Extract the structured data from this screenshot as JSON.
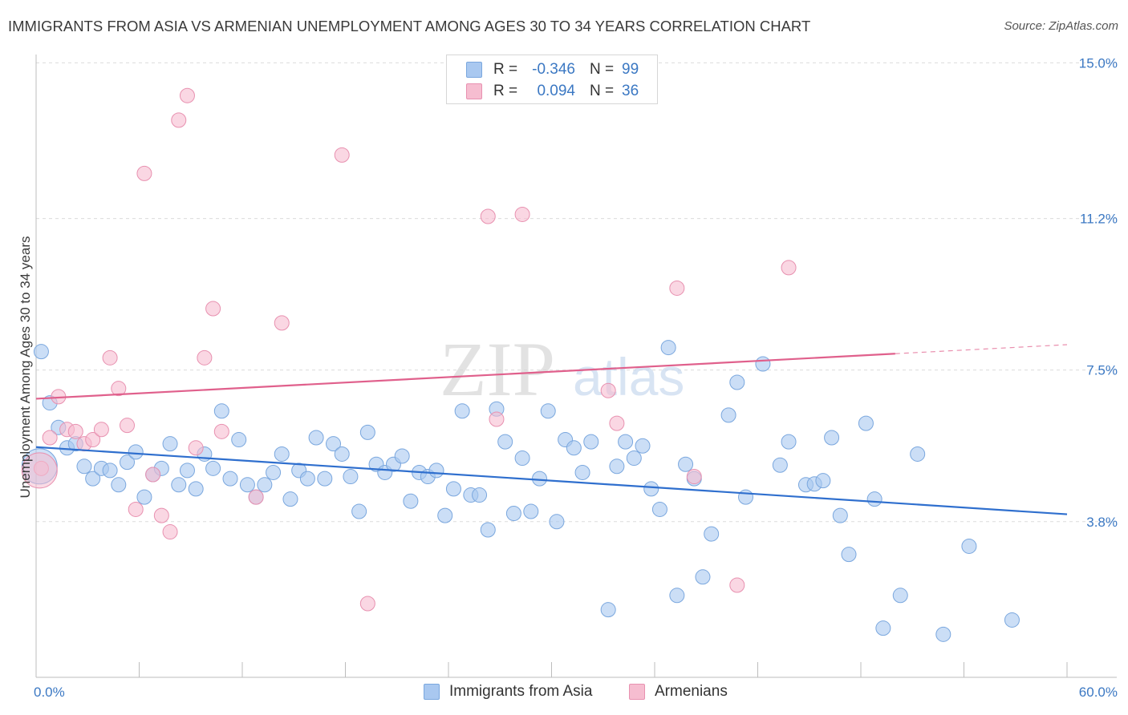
{
  "header": {
    "title": "IMMIGRANTS FROM ASIA VS ARMENIAN UNEMPLOYMENT AMONG AGES 30 TO 34 YEARS CORRELATION CHART",
    "source": "Source: ZipAtlas.com"
  },
  "watermark": {
    "zip": "ZIP",
    "atlas": "atlas"
  },
  "legend": {
    "items": [
      {
        "r_label": "R =",
        "r_value": "-0.346",
        "n_label": "N =",
        "n_value": "99",
        "color": "#a9c8f0",
        "border": "#7aa7de"
      },
      {
        "r_label": "R =",
        "r_value": "0.094",
        "n_label": "N =",
        "n_value": "36",
        "color": "#f6bdd0",
        "border": "#e891b0"
      }
    ]
  },
  "bottom_legend": {
    "items": [
      {
        "label": "Immigrants from Asia",
        "color": "#a9c8f0",
        "border": "#7aa7de"
      },
      {
        "label": "Armenians",
        "color": "#f6bdd0",
        "border": "#e891b0"
      }
    ]
  },
  "chart_data": {
    "type": "scatter",
    "title": "IMMIGRANTS FROM ASIA VS ARMENIAN UNEMPLOYMENT AMONG AGES 30 TO 34 YEARS CORRELATION CHART",
    "xlabel": "",
    "ylabel": "Unemployment Among Ages 30 to 34 years",
    "xlim": [
      0,
      60
    ],
    "ylim": [
      0,
      15.5
    ],
    "x_tick_labels": [
      {
        "value": 0,
        "label": "0.0%"
      },
      {
        "value": 60,
        "label": "60.0%"
      }
    ],
    "y_tick_labels": [
      {
        "value": 3.8,
        "label": "3.8%"
      },
      {
        "value": 7.5,
        "label": "7.5%"
      },
      {
        "value": 11.2,
        "label": "11.2%"
      },
      {
        "value": 15.0,
        "label": "15.0%"
      }
    ],
    "grid": true,
    "series": [
      {
        "name": "Immigrants from Asia",
        "color": "#a9c8f0",
        "stroke": "#7aa7de",
        "trend": {
          "x": [
            0,
            60
          ],
          "y": [
            5.62,
            3.98
          ],
          "color": "#2f6fce"
        },
        "points": [
          [
            0.3,
            7.95
          ],
          [
            0.8,
            6.7
          ],
          [
            1.3,
            6.1
          ],
          [
            1.8,
            5.6
          ],
          [
            2.3,
            5.7
          ],
          [
            2.8,
            5.15
          ],
          [
            3.3,
            4.85
          ],
          [
            3.8,
            5.1
          ],
          [
            4.3,
            5.05
          ],
          [
            4.8,
            4.7
          ],
          [
            5.3,
            5.25
          ],
          [
            5.8,
            5.5
          ],
          [
            6.3,
            4.4
          ],
          [
            6.8,
            4.95
          ],
          [
            7.3,
            5.1
          ],
          [
            7.8,
            5.7
          ],
          [
            8.3,
            4.7
          ],
          [
            8.8,
            5.05
          ],
          [
            9.3,
            4.6
          ],
          [
            9.8,
            5.45
          ],
          [
            10.3,
            5.1
          ],
          [
            10.8,
            6.5
          ],
          [
            11.3,
            4.85
          ],
          [
            11.8,
            5.8
          ],
          [
            12.3,
            4.7
          ],
          [
            12.8,
            4.4
          ],
          [
            13.3,
            4.7
          ],
          [
            13.8,
            5.0
          ],
          [
            14.3,
            5.45
          ],
          [
            14.8,
            4.35
          ],
          [
            15.3,
            5.05
          ],
          [
            15.8,
            4.85
          ],
          [
            16.3,
            5.85
          ],
          [
            16.8,
            4.85
          ],
          [
            17.3,
            5.7
          ],
          [
            17.8,
            5.45
          ],
          [
            18.3,
            4.9
          ],
          [
            18.8,
            4.05
          ],
          [
            19.3,
            5.98
          ],
          [
            19.8,
            5.2
          ],
          [
            20.3,
            5.0
          ],
          [
            20.8,
            5.2
          ],
          [
            21.3,
            5.4
          ],
          [
            21.8,
            4.3
          ],
          [
            22.3,
            5.0
          ],
          [
            22.8,
            4.9
          ],
          [
            23.3,
            5.05
          ],
          [
            23.8,
            3.95
          ],
          [
            24.3,
            4.6
          ],
          [
            24.8,
            6.5
          ],
          [
            25.3,
            4.45
          ],
          [
            25.8,
            4.45
          ],
          [
            26.3,
            3.6
          ],
          [
            26.8,
            6.55
          ],
          [
            27.3,
            5.75
          ],
          [
            27.8,
            4.0
          ],
          [
            28.3,
            5.35
          ],
          [
            28.8,
            4.05
          ],
          [
            29.3,
            4.85
          ],
          [
            29.8,
            6.5
          ],
          [
            30.3,
            3.8
          ],
          [
            30.8,
            5.8
          ],
          [
            31.3,
            5.6
          ],
          [
            31.8,
            5.0
          ],
          [
            32.3,
            5.75
          ],
          [
            33.3,
            1.65
          ],
          [
            33.8,
            5.15
          ],
          [
            34.3,
            5.75
          ],
          [
            34.8,
            5.35
          ],
          [
            35.3,
            5.65
          ],
          [
            35.8,
            4.6
          ],
          [
            36.3,
            4.1
          ],
          [
            36.8,
            8.05
          ],
          [
            37.3,
            2.0
          ],
          [
            37.8,
            5.2
          ],
          [
            38.3,
            4.85
          ],
          [
            38.8,
            2.45
          ],
          [
            39.3,
            3.5
          ],
          [
            40.3,
            6.4
          ],
          [
            40.8,
            7.2
          ],
          [
            41.3,
            4.4
          ],
          [
            42.3,
            7.65
          ],
          [
            43.3,
            5.18
          ],
          [
            43.8,
            5.75
          ],
          [
            44.8,
            4.7
          ],
          [
            45.3,
            4.72
          ],
          [
            45.8,
            4.8
          ],
          [
            46.3,
            5.85
          ],
          [
            46.8,
            3.95
          ],
          [
            47.3,
            3.0
          ],
          [
            48.3,
            6.2
          ],
          [
            48.8,
            4.35
          ],
          [
            49.3,
            1.2
          ],
          [
            50.3,
            2.0
          ],
          [
            51.3,
            5.45
          ],
          [
            52.8,
            1.05
          ],
          [
            54.3,
            3.2
          ],
          [
            56.8,
            1.4
          ],
          [
            0.2,
            5.15
          ]
        ]
      },
      {
        "name": "Armenians",
        "color": "#f6bdd0",
        "stroke": "#e891b0",
        "trend": {
          "x": [
            0,
            50
          ],
          "y": [
            6.8,
            7.9
          ],
          "dash_to": {
            "x": 60,
            "y": 8.12
          },
          "color": "#e0608c"
        },
        "points": [
          [
            0.3,
            5.1
          ],
          [
            0.8,
            5.85
          ],
          [
            1.3,
            6.85
          ],
          [
            1.8,
            6.05
          ],
          [
            2.3,
            6.0
          ],
          [
            2.8,
            5.7
          ],
          [
            3.3,
            5.8
          ],
          [
            3.8,
            6.05
          ],
          [
            4.3,
            7.8
          ],
          [
            4.8,
            7.05
          ],
          [
            5.3,
            6.15
          ],
          [
            5.8,
            4.1
          ],
          [
            6.3,
            12.3
          ],
          [
            6.8,
            4.95
          ],
          [
            7.3,
            3.95
          ],
          [
            7.8,
            3.55
          ],
          [
            8.3,
            13.6
          ],
          [
            8.8,
            14.2
          ],
          [
            9.3,
            5.6
          ],
          [
            9.8,
            7.8
          ],
          [
            10.3,
            9.0
          ],
          [
            10.8,
            6.0
          ],
          [
            12.8,
            4.4
          ],
          [
            14.3,
            8.65
          ],
          [
            17.8,
            12.75
          ],
          [
            19.3,
            1.8
          ],
          [
            26.3,
            11.25
          ],
          [
            26.8,
            6.3
          ],
          [
            28.3,
            11.3
          ],
          [
            33.3,
            7.0
          ],
          [
            33.8,
            6.2
          ],
          [
            37.3,
            9.5
          ],
          [
            38.3,
            4.9
          ],
          [
            40.8,
            2.25
          ],
          [
            43.8,
            10.0
          ],
          [
            0.2,
            5.05
          ]
        ]
      }
    ]
  }
}
